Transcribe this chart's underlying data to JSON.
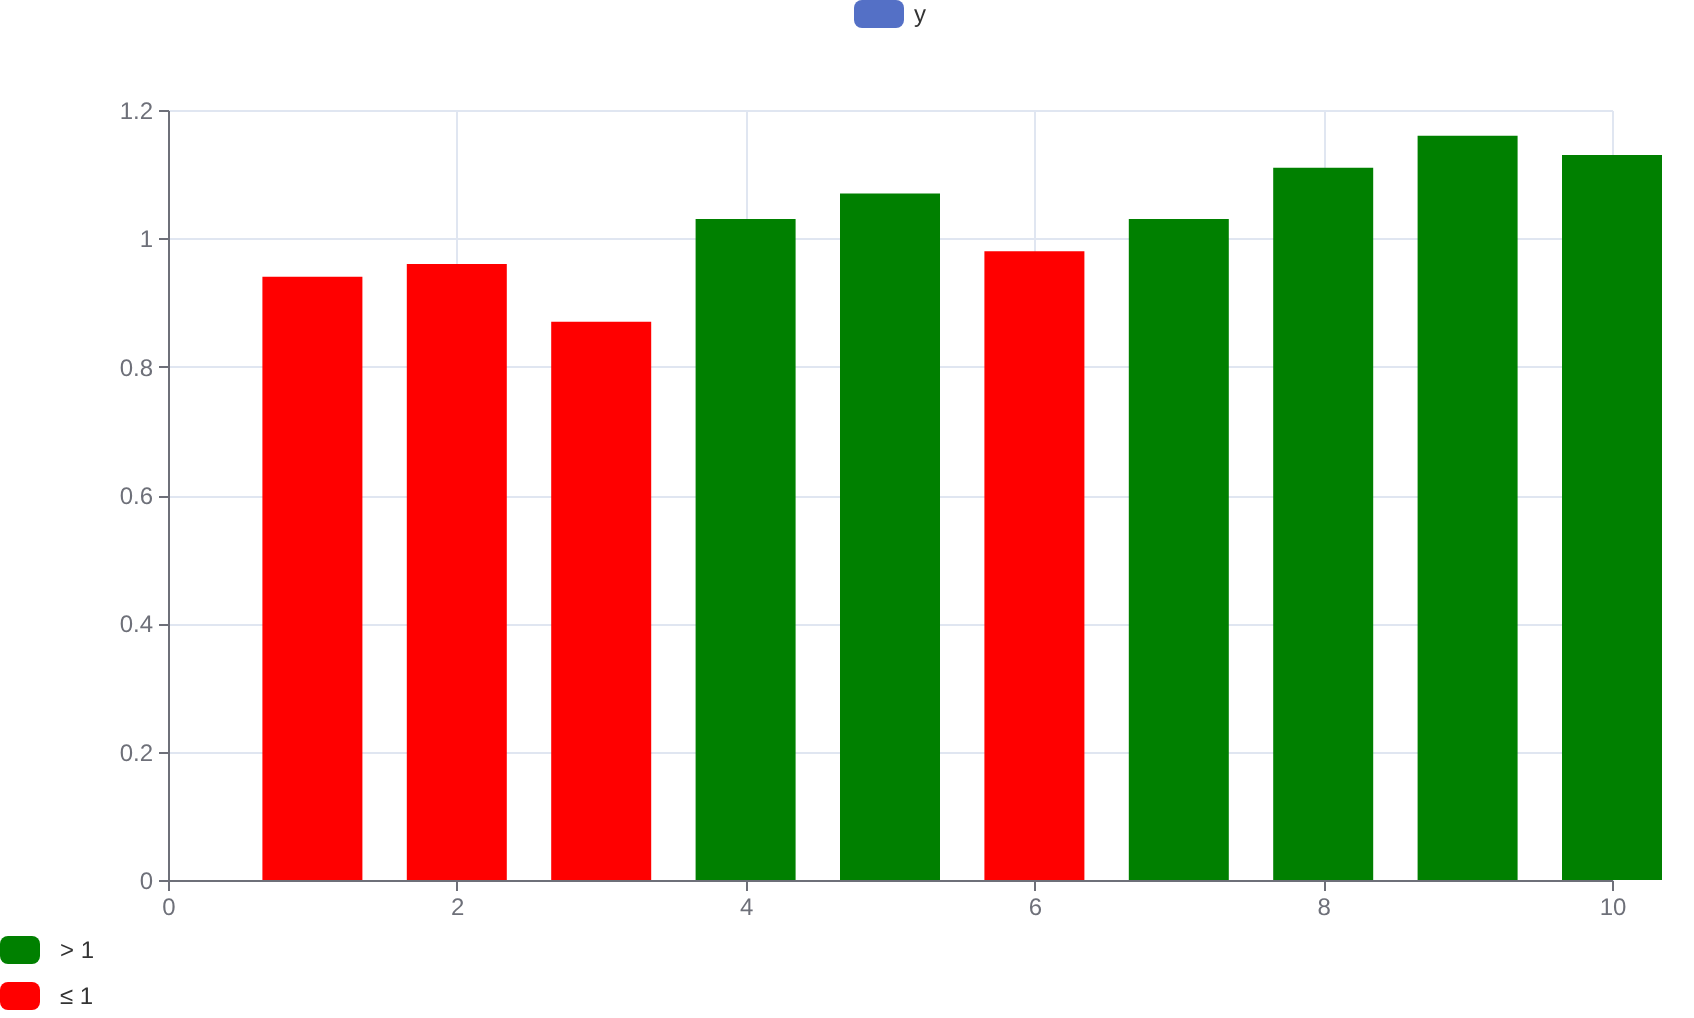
{
  "chart_data": {
    "type": "bar",
    "x": [
      1,
      2,
      3,
      4,
      5,
      6,
      7,
      8,
      9,
      10
    ],
    "series": [
      {
        "name": "y",
        "color": "#5470c6",
        "values": [
          0.94,
          0.96,
          0.87,
          1.03,
          1.07,
          0.98,
          1.03,
          1.11,
          1.16,
          1.13
        ],
        "colors": [
          "#ff0000",
          "#ff0000",
          "#ff0000",
          "#008000",
          "#008000",
          "#ff0000",
          "#008000",
          "#008000",
          "#008000",
          "#008000"
        ]
      }
    ],
    "xlim": [
      0,
      10
    ],
    "xticks": [
      0,
      2,
      4,
      6,
      8,
      10
    ],
    "ylim": [
      0,
      1.2
    ],
    "yticks": [
      0,
      0.2,
      0.4,
      0.6,
      0.8,
      1,
      1.2
    ],
    "grid": true,
    "legend": "top",
    "annotations": [
      "> 1",
      "≤ 1"
    ]
  }
}
